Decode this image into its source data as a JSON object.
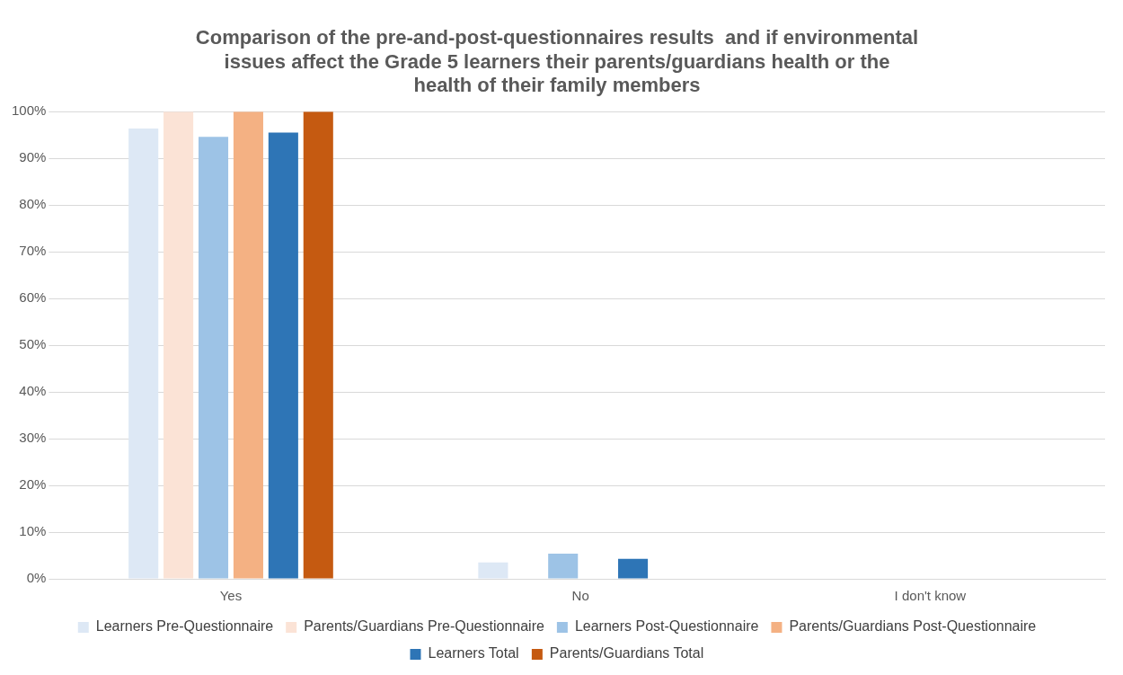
{
  "chart_data": {
    "type": "bar",
    "title": "Comparison of the pre-and-post-questionnaires results  and if environmental issues affect the Grade 5 learners their parents/guardians health or the health of their family members",
    "categories": [
      "Yes",
      "No",
      "I don't know"
    ],
    "series": [
      {
        "name": "Learners Pre-Questionnaire",
        "color": "#dde8f5",
        "values": [
          96.4,
          3.5,
          0
        ]
      },
      {
        "name": "Parents/Guardians Pre-Questionnaire",
        "color": "#fbe3d6",
        "values": [
          100,
          0,
          0
        ]
      },
      {
        "name": "Learners Post-Questionnaire",
        "color": "#9dc3e6",
        "values": [
          94.6,
          5.4,
          0
        ]
      },
      {
        "name": "Parents/Guardians Post-Questionnaire",
        "color": "#f4b183",
        "values": [
          100,
          0,
          0
        ]
      },
      {
        "name": "Learners Total",
        "color": "#2e75b6",
        "values": [
          95.5,
          4.3,
          0
        ]
      },
      {
        "name": "Parents/Guardians Total",
        "color": "#c55a11",
        "values": [
          100,
          0,
          0
        ]
      }
    ],
    "ylim": [
      0,
      100
    ],
    "yticks": [
      {
        "value": 0,
        "label": "0%"
      },
      {
        "value": 10,
        "label": "10%"
      },
      {
        "value": 20,
        "label": "20%"
      },
      {
        "value": 30,
        "label": "30%"
      },
      {
        "value": 40,
        "label": "40%"
      },
      {
        "value": 50,
        "label": "50%"
      },
      {
        "value": 60,
        "label": "60%"
      },
      {
        "value": 70,
        "label": "70%"
      },
      {
        "value": 80,
        "label": "80%"
      },
      {
        "value": 90,
        "label": "90%"
      },
      {
        "value": 100,
        "label": "100%"
      }
    ],
    "grid": "y",
    "legend": "bottom"
  }
}
